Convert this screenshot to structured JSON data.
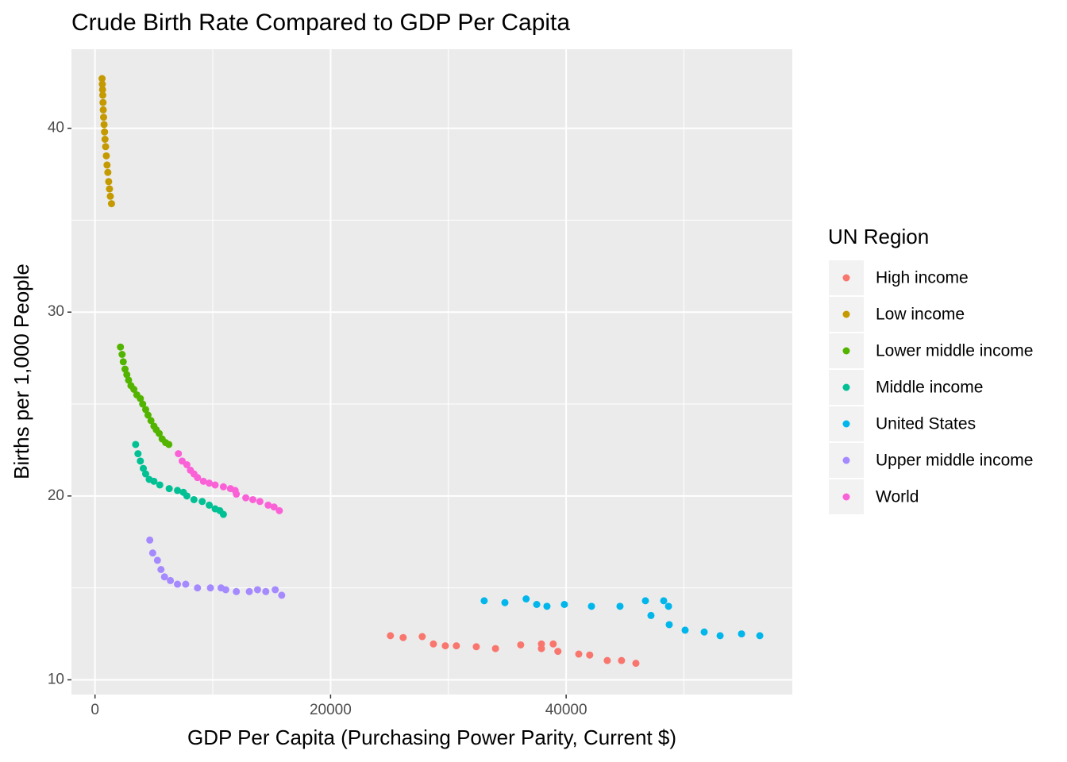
{
  "chart_data": {
    "type": "scatter",
    "title": "Crude Birth Rate Compared to GDP Per Capita",
    "x_label": "GDP Per Capita (Purchasing Power Parity, Current $)",
    "y_label": "Births per 1,000 People",
    "legend_title": "UN Region",
    "legend_position": "right",
    "grid": true,
    "xlim": [
      -2000,
      59200
    ],
    "xticks": [
      0,
      20000,
      40000
    ],
    "minor_xticks": [
      10000,
      30000,
      50000
    ],
    "ylim": [
      9.2,
      44.3
    ],
    "yticks": [
      10,
      20,
      30,
      40
    ],
    "minor_yticks": [
      15,
      25,
      35
    ],
    "series": [
      {
        "name": "High income",
        "color": "#F8766D",
        "x": [
          25080,
          26160,
          27780,
          28730,
          29740,
          30680,
          32370,
          34000,
          36140,
          37900,
          37900,
          38900,
          39300,
          41070,
          42000,
          43490,
          44700,
          45920
        ],
        "values": [
          12.4,
          12.3,
          12.35,
          11.95,
          11.85,
          11.85,
          11.8,
          11.7,
          11.9,
          11.95,
          11.7,
          11.95,
          11.55,
          11.4,
          11.35,
          11.05,
          11.05,
          10.9
        ]
      },
      {
        "name": "Low income",
        "color": "#C49A00",
        "x": [
          600,
          620,
          640,
          660,
          680,
          700,
          730,
          770,
          810,
          850,
          900,
          960,
          1020,
          1090,
          1160,
          1230,
          1300,
          1400
        ],
        "values": [
          42.7,
          42.4,
          42.1,
          41.8,
          41.4,
          41.0,
          40.6,
          40.2,
          39.8,
          39.4,
          39.0,
          38.5,
          38.0,
          37.6,
          37.1,
          36.7,
          36.3,
          35.9
        ]
      },
      {
        "name": "Lower middle income",
        "color": "#53B400",
        "x": [
          2160,
          2300,
          2400,
          2550,
          2700,
          2850,
          3050,
          3300,
          3550,
          3850,
          4050,
          4300,
          4500,
          4750,
          5000,
          5200,
          5450,
          5700,
          6000,
          6270
        ],
        "values": [
          28.1,
          27.7,
          27.3,
          26.9,
          26.6,
          26.3,
          26.0,
          25.8,
          25.5,
          25.3,
          25.0,
          24.7,
          24.4,
          24.1,
          23.8,
          23.6,
          23.4,
          23.1,
          22.9,
          22.8
        ]
      },
      {
        "name": "Middle income",
        "color": "#00C094",
        "x": [
          3450,
          3650,
          3850,
          4100,
          4300,
          4600,
          5000,
          5500,
          6300,
          7000,
          7500,
          7800,
          8400,
          9100,
          9700,
          10200,
          10600,
          10900
        ],
        "values": [
          22.8,
          22.3,
          21.9,
          21.5,
          21.2,
          20.9,
          20.8,
          20.6,
          20.4,
          20.3,
          20.2,
          20.0,
          19.8,
          19.7,
          19.5,
          19.3,
          19.2,
          19.0
        ]
      },
      {
        "name": "United States",
        "color": "#00B6EB",
        "x": [
          33040,
          34800,
          36600,
          37500,
          38370,
          39850,
          42150,
          44570,
          46730,
          47200,
          48280,
          48690,
          48750,
          50100,
          51720,
          53070,
          54890,
          56440
        ],
        "values": [
          14.3,
          14.2,
          14.4,
          14.1,
          14.0,
          14.1,
          14.0,
          14.0,
          14.3,
          13.5,
          14.3,
          14.0,
          13.0,
          12.7,
          12.6,
          12.4,
          12.5,
          12.4
        ]
      },
      {
        "name": "Upper middle income",
        "color": "#A58AFF",
        "x": [
          4650,
          4900,
          5300,
          5600,
          5900,
          6400,
          7000,
          7700,
          8700,
          9800,
          10700,
          11100,
          12000,
          13100,
          13800,
          14500,
          15300,
          15850
        ],
        "values": [
          17.6,
          16.9,
          16.5,
          16.0,
          15.6,
          15.4,
          15.2,
          15.2,
          15.0,
          15.0,
          15.0,
          14.9,
          14.8,
          14.8,
          14.9,
          14.8,
          14.9,
          14.6
        ]
      },
      {
        "name": "World",
        "color": "#FB61D7",
        "x": [
          7080,
          7400,
          7800,
          8100,
          8400,
          8700,
          9200,
          9700,
          10200,
          10900,
          11500,
          11900,
          12000,
          12800,
          13400,
          14000,
          14700,
          15200,
          15650
        ],
        "values": [
          22.3,
          21.9,
          21.7,
          21.4,
          21.2,
          21.0,
          20.8,
          20.7,
          20.6,
          20.5,
          20.4,
          20.3,
          20.1,
          19.9,
          19.8,
          19.7,
          19.5,
          19.4,
          19.2
        ]
      }
    ]
  }
}
